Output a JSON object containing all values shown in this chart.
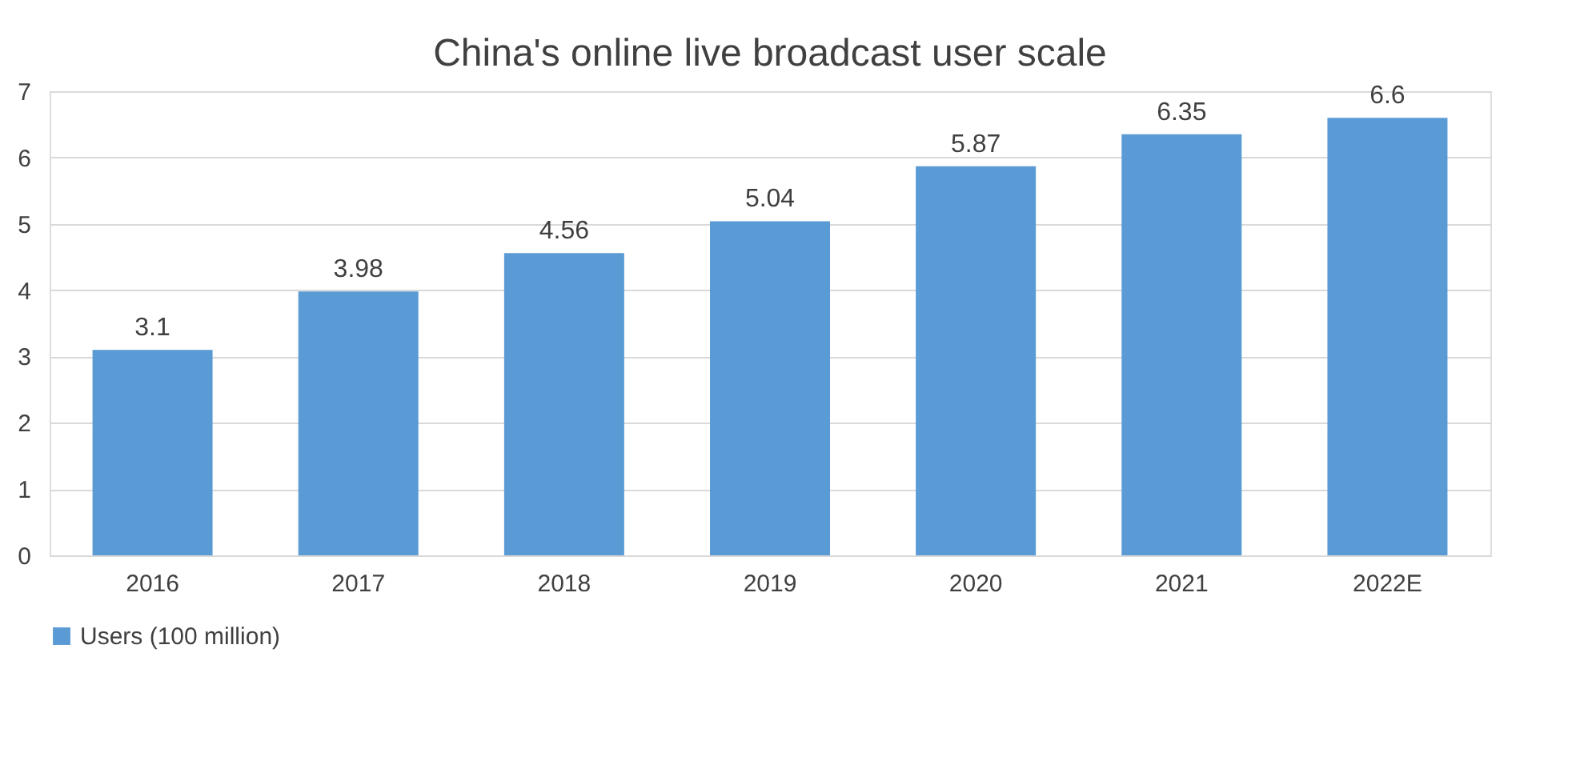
{
  "chart_data": {
    "type": "bar",
    "title": "China's online live broadcast user scale",
    "categories": [
      "2016",
      "2017",
      "2018",
      "2019",
      "2020",
      "2021",
      "2022E"
    ],
    "series": [
      {
        "name": "Users (100 million)",
        "color": "#5b9bd5",
        "values": [
          3.1,
          3.98,
          4.56,
          5.04,
          5.87,
          6.35,
          6.6
        ]
      }
    ],
    "ylim": [
      0,
      7
    ],
    "yticks": [
      0,
      1,
      2,
      3,
      4,
      5,
      6,
      7
    ],
    "grid": "y",
    "legend": "bottom",
    "data_labels": true
  }
}
